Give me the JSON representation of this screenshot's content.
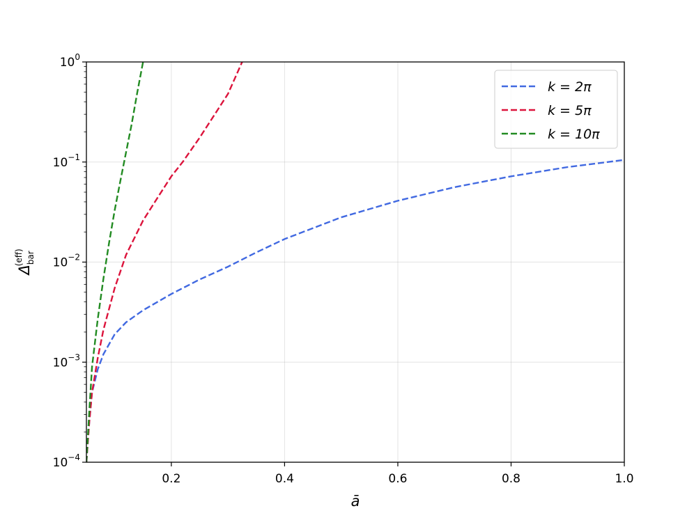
{
  "chart_data": {
    "type": "line",
    "title": "",
    "xlabel": "ā",
    "ylabel_base": "Δ",
    "ylabel_sub": "bar",
    "ylabel_sup": "(eff)",
    "yscale": "log",
    "xlim": [
      0.05,
      1.0
    ],
    "ylim": [
      0.0001,
      1
    ],
    "grid": true,
    "legend_position": "top-right",
    "line_style": "dashed",
    "xticks": [
      {
        "value": 0.2,
        "label": "0.2"
      },
      {
        "value": 0.4,
        "label": "0.4"
      },
      {
        "value": 0.6,
        "label": "0.6"
      },
      {
        "value": 0.8,
        "label": "0.8"
      },
      {
        "value": 1.0,
        "label": "1.0"
      }
    ],
    "yticks": [
      {
        "value": 0.0001,
        "base": "10",
        "exp": "−4"
      },
      {
        "value": 0.001,
        "base": "10",
        "exp": "−3"
      },
      {
        "value": 0.01,
        "base": "10",
        "exp": "−2"
      },
      {
        "value": 0.1,
        "base": "10",
        "exp": "−1"
      },
      {
        "value": 1,
        "base": "10",
        "exp": "0"
      }
    ],
    "series": [
      {
        "name": "k = 2π",
        "legend_label": "k = 2π",
        "color": "#4169e1",
        "x": [
          0.05,
          0.055,
          0.06,
          0.07,
          0.08,
          0.1,
          0.12,
          0.15,
          0.2,
          0.25,
          0.3,
          0.35,
          0.4,
          0.5,
          0.6,
          0.7,
          0.8,
          0.9,
          1.0
        ],
        "y": [
          0.0001,
          0.00025,
          0.0005,
          0.00085,
          0.0012,
          0.0019,
          0.0025,
          0.0033,
          0.0048,
          0.0067,
          0.009,
          0.0125,
          0.017,
          0.028,
          0.041,
          0.056,
          0.072,
          0.089,
          0.105
        ]
      },
      {
        "name": "k = 5π",
        "legend_label": "k = 5π",
        "color": "#dc143c",
        "x": [
          0.05,
          0.055,
          0.06,
          0.07,
          0.08,
          0.1,
          0.12,
          0.15,
          0.18,
          0.2,
          0.22,
          0.25,
          0.28,
          0.3,
          0.325
        ],
        "y": [
          0.0001,
          0.00025,
          0.0005,
          0.0011,
          0.0021,
          0.0055,
          0.0118,
          0.026,
          0.048,
          0.072,
          0.1,
          0.175,
          0.32,
          0.48,
          1.0
        ]
      },
      {
        "name": "k = 10π",
        "legend_label": "k = 10π",
        "color": "#228b22",
        "x": [
          0.05,
          0.055,
          0.06,
          0.07,
          0.08,
          0.09,
          0.1,
          0.11,
          0.12,
          0.13,
          0.14,
          0.15
        ],
        "y": [
          0.0001,
          0.00032,
          0.0009,
          0.0027,
          0.0068,
          0.0155,
          0.033,
          0.065,
          0.125,
          0.24,
          0.5,
          1.0
        ]
      }
    ]
  }
}
